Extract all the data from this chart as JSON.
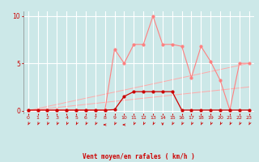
{
  "x": [
    0,
    1,
    2,
    3,
    4,
    5,
    6,
    7,
    8,
    9,
    10,
    11,
    12,
    13,
    14,
    15,
    16,
    17,
    18,
    19,
    20,
    21,
    22,
    23
  ],
  "line1_y": [
    0.05,
    0.05,
    0.05,
    0.05,
    0.05,
    0.05,
    0.05,
    0.05,
    0.05,
    0.1,
    1.5,
    2.0,
    2.0,
    2.0,
    2.0,
    2.0,
    0.05,
    0.05,
    0.05,
    0.05,
    0.05,
    0.05,
    0.05,
    0.05
  ],
  "line2_y": [
    0.05,
    0.05,
    0.05,
    0.05,
    0.05,
    0.05,
    0.05,
    0.05,
    0.05,
    6.5,
    5.0,
    7.0,
    7.0,
    10.0,
    7.0,
    7.0,
    6.8,
    3.5,
    6.8,
    5.2,
    3.2,
    0.05,
    5.0,
    5.0
  ],
  "line3_x": [
    0,
    23
  ],
  "line3_y": [
    0.0,
    5.0
  ],
  "line4_x": [
    0,
    23
  ],
  "line4_y": [
    0.0,
    2.5
  ],
  "xlabel": "Vent moyen/en rafales ( km/h )",
  "bg_color": "#cce8e8",
  "grid_color": "#ffffff",
  "line1_color": "#cc0000",
  "line2_color": "#ff8080",
  "diag_color": "#ffaaaa",
  "yticks": [
    0,
    5,
    10
  ],
  "xticks": [
    0,
    1,
    2,
    3,
    4,
    5,
    6,
    7,
    8,
    9,
    10,
    11,
    12,
    13,
    14,
    15,
    16,
    17,
    18,
    19,
    20,
    21,
    22,
    23
  ],
  "ylim": [
    -0.3,
    10.5
  ],
  "xlim": [
    -0.5,
    23.5
  ],
  "arrow_angles": [
    225,
    225,
    225,
    225,
    225,
    225,
    225,
    225,
    270,
    225,
    270,
    225,
    225,
    225,
    180,
    225,
    225,
    225,
    225,
    225,
    225,
    225,
    225,
    225
  ]
}
